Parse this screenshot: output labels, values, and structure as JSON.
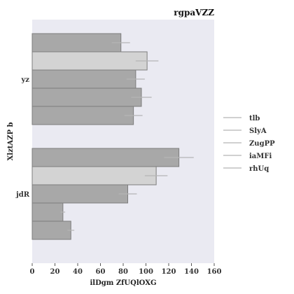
{
  "chart_data": {
    "type": "bar",
    "orientation": "horizontal",
    "title": "rgpaVZZ",
    "xlabel": "ilDgm ZfUQlOXG",
    "ylabel": "XlztAZP b",
    "categories": [
      "yz",
      "jdR"
    ],
    "xlim": [
      0,
      160
    ],
    "xticks": [
      0,
      20,
      40,
      60,
      80,
      100,
      120,
      140,
      160
    ],
    "grid": false,
    "legend_position": "right",
    "series": [
      {
        "name": "tlb",
        "color": "#a8a8a8",
        "values": [
          78,
          129
        ],
        "errors": [
          8,
          13
        ]
      },
      {
        "name": "SlyA",
        "color": "#d3d3d3",
        "values": [
          101,
          109
        ],
        "errors": [
          10,
          10
        ]
      },
      {
        "name": "ZugPP",
        "color": "#a8a8a8",
        "values": [
          91,
          84
        ],
        "errors": [
          8,
          8
        ]
      },
      {
        "name": "iaMFi",
        "color": "#a8a8a8",
        "values": [
          96,
          27
        ],
        "errors": [
          9,
          2
        ]
      },
      {
        "name": "rhUq",
        "color": "#a8a8a8",
        "values": [
          89,
          34
        ],
        "errors": [
          8,
          3
        ]
      }
    ]
  }
}
